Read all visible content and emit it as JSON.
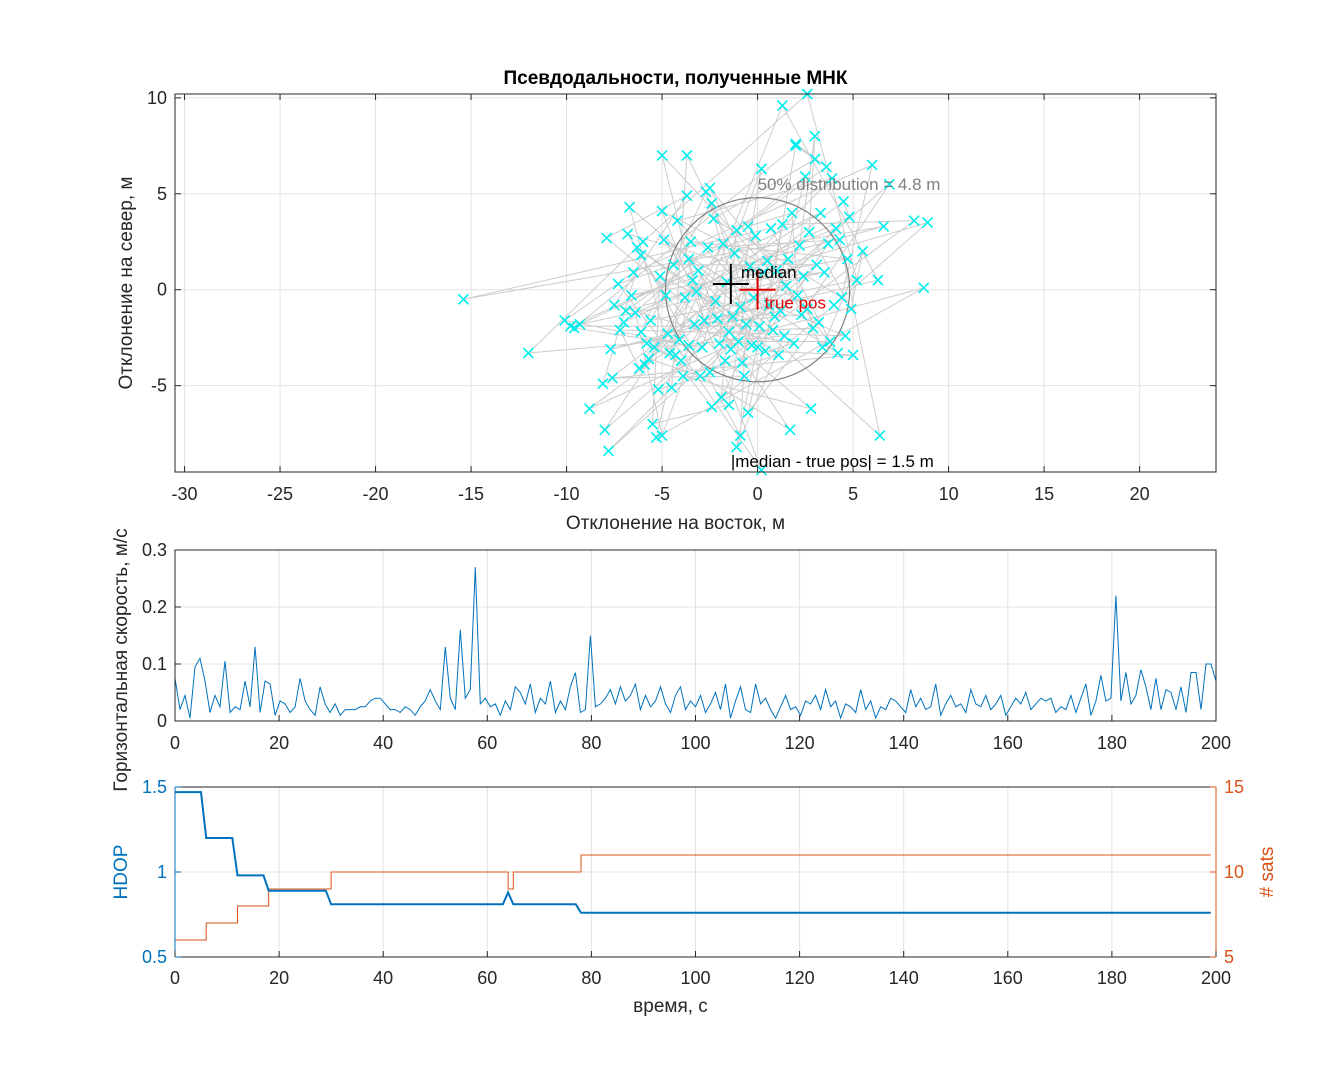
{
  "chart_data": [
    {
      "type": "scatter",
      "title": "Псевдодальности, полученные МНК",
      "xlabel": "Отклонение на восток, м",
      "ylabel": "Отклонение на север, м",
      "xlim": [
        -30.5,
        24
      ],
      "ylim": [
        -9.5,
        10.2
      ],
      "xticks": [
        -30,
        -25,
        -20,
        -15,
        -10,
        -5,
        0,
        5,
        10,
        15,
        20
      ],
      "yticks": [
        -5,
        0,
        5,
        10
      ],
      "grid": true,
      "colors": {
        "points": "#00f0f0",
        "track": "#cccccc",
        "circle": "#7f7f7f",
        "median": "#000000",
        "true_pos": "#e00000",
        "dist_label": "#7f7f7f"
      },
      "points": [
        [
          -15.4,
          -0.5
        ],
        [
          -12,
          -3.3
        ],
        [
          -10.1,
          -1.6
        ],
        [
          -9.8,
          -1.9
        ],
        [
          -9.6,
          -2.0
        ],
        [
          -9.3,
          -1.8
        ],
        [
          -8.8,
          -6.2
        ],
        [
          -8.1,
          -4.9
        ],
        [
          -8.0,
          -7.3
        ],
        [
          -7.8,
          -8.4
        ],
        [
          -7.9,
          2.7
        ],
        [
          -7.7,
          -3.1
        ],
        [
          -7.6,
          -4.6
        ],
        [
          -7.5,
          -0.8
        ],
        [
          -7.3,
          0.3
        ],
        [
          -7.2,
          -2.1
        ],
        [
          -7.0,
          -1.7
        ],
        [
          -6.9,
          -1.1
        ],
        [
          -6.8,
          2.9
        ],
        [
          -6.7,
          4.3
        ],
        [
          -6.6,
          -0.3
        ],
        [
          -6.5,
          0.9
        ],
        [
          -6.4,
          -1.2
        ],
        [
          -6.3,
          2.2
        ],
        [
          -6.2,
          -4.1
        ],
        [
          -6.1,
          1.8
        ],
        [
          -6.0,
          2.5
        ],
        [
          -5.9,
          -3.9
        ],
        [
          -5.8,
          -2.8
        ],
        [
          -5.7,
          -3.6
        ],
        [
          -5.6,
          -1.6
        ],
        [
          -5.5,
          -7.0
        ],
        [
          -5.4,
          -3.0
        ],
        [
          -5.3,
          -7.7
        ],
        [
          -5.2,
          -5.2
        ],
        [
          -5.1,
          0.7
        ],
        [
          -5.0,
          4.1
        ],
        [
          -5.0,
          -7.6
        ],
        [
          -4.9,
          2.6
        ],
        [
          -4.8,
          -0.3
        ],
        [
          -4.7,
          -2.3
        ],
        [
          -4.6,
          -3.3
        ],
        [
          -4.5,
          -5.1
        ],
        [
          -4.4,
          1.3
        ],
        [
          -4.3,
          -3.4
        ],
        [
          -4.2,
          3.6
        ],
        [
          -4.1,
          -2.6
        ],
        [
          -4.0,
          -3.7
        ],
        [
          -3.9,
          -4.5
        ],
        [
          -3.8,
          -0.4
        ],
        [
          -3.7,
          4.9
        ],
        [
          -3.6,
          1.6
        ],
        [
          -3.5,
          2.5
        ],
        [
          -3.4,
          0.5
        ],
        [
          -3.3,
          -1.8
        ],
        [
          -3.2,
          -0.1
        ],
        [
          -3.1,
          1.0
        ],
        [
          -3.0,
          -4.5
        ],
        [
          -2.9,
          -3.0
        ],
        [
          -2.8,
          -1.6
        ],
        [
          -2.7,
          5.1
        ],
        [
          -2.6,
          2.2
        ],
        [
          -2.5,
          -4.3
        ],
        [
          -2.4,
          4.5
        ],
        [
          -2.3,
          3.7
        ],
        [
          -2.2,
          -0.6
        ],
        [
          -2.1,
          -1.5
        ],
        [
          -2.0,
          -2.8
        ],
        [
          -1.9,
          -5.6
        ],
        [
          -1.8,
          2.4
        ],
        [
          -1.7,
          -3.7
        ],
        [
          -1.6,
          0.4
        ],
        [
          -1.5,
          -2.2
        ],
        [
          -1.4,
          -3.1
        ],
        [
          -1.3,
          -1.4
        ],
        [
          -1.2,
          1.9
        ],
        [
          -1.1,
          3.1
        ],
        [
          -1.0,
          -2.7
        ],
        [
          -0.9,
          -0.9
        ],
        [
          -0.8,
          -3.8
        ],
        [
          -0.7,
          -4.5
        ],
        [
          -0.6,
          -1.8
        ],
        [
          -0.5,
          3.3
        ],
        [
          -0.4,
          1.2
        ],
        [
          -0.3,
          -2.9
        ],
        [
          -0.2,
          -0.4
        ],
        [
          -0.1,
          2.8
        ],
        [
          0.0,
          -3.0
        ],
        [
          0.1,
          -1.9
        ],
        [
          0.2,
          6.3
        ],
        [
          0.3,
          0.9
        ],
        [
          0.4,
          -3.2
        ],
        [
          0.5,
          1.5
        ],
        [
          0.6,
          -0.8
        ],
        [
          0.7,
          3.2
        ],
        [
          0.8,
          -2.1
        ],
        [
          0.9,
          -1.4
        ],
        [
          1.0,
          1.0
        ],
        [
          1.1,
          -3.4
        ],
        [
          1.2,
          -1.1
        ],
        [
          1.3,
          3.4
        ],
        [
          1.4,
          -2.4
        ],
        [
          1.5,
          0.2
        ],
        [
          1.6,
          1.6
        ],
        [
          1.7,
          -7.3
        ],
        [
          1.8,
          4.0
        ],
        [
          1.9,
          -2.8
        ],
        [
          2.0,
          7.6
        ],
        [
          2.1,
          -0.3
        ],
        [
          2.2,
          2.3
        ],
        [
          2.3,
          -1.3
        ],
        [
          2.4,
          0.7
        ],
        [
          2.5,
          5.9
        ],
        [
          2.6,
          -1.0
        ],
        [
          2.7,
          3.0
        ],
        [
          2.8,
          -6.2
        ],
        [
          2.9,
          -2.0
        ],
        [
          3.0,
          6.8
        ],
        [
          3.1,
          1.3
        ],
        [
          3.2,
          -1.7
        ],
        [
          3.3,
          4.0
        ],
        [
          3.4,
          -3.0
        ],
        [
          3.5,
          0.9
        ],
        [
          3.6,
          6.4
        ],
        [
          3.7,
          2.4
        ],
        [
          3.8,
          -2.7
        ],
        [
          3.9,
          5.8
        ],
        [
          4.0,
          -0.8
        ],
        [
          4.1,
          3.2
        ],
        [
          4.2,
          -3.3
        ],
        [
          4.3,
          2.6
        ],
        [
          4.4,
          -0.4
        ],
        [
          4.5,
          4.6
        ],
        [
          4.6,
          -2.4
        ],
        [
          4.7,
          1.6
        ],
        [
          4.8,
          3.8
        ],
        [
          4.9,
          -1.0
        ],
        [
          5.0,
          -3.4
        ],
        [
          5.2,
          0.5
        ],
        [
          5.5,
          2.0
        ],
        [
          6.0,
          6.5
        ],
        [
          6.3,
          0.5
        ],
        [
          6.4,
          -7.6
        ],
        [
          6.6,
          3.3
        ],
        [
          6.9,
          5.5
        ],
        [
          8.2,
          3.6
        ],
        [
          8.7,
          0.1
        ],
        [
          8.9,
          3.5
        ],
        [
          -6.1,
          -2.2
        ],
        [
          -3.6,
          -2.9
        ],
        [
          1.3,
          9.6
        ],
        [
          2.6,
          10.2
        ],
        [
          -3.7,
          7.0
        ],
        [
          -5.0,
          7.0
        ],
        [
          -2.5,
          5.3
        ],
        [
          2.0,
          7.5
        ],
        [
          3.0,
          8.0
        ],
        [
          -0.5,
          -6.4
        ],
        [
          -0.9,
          -7.6
        ],
        [
          0.2,
          -9.4
        ],
        [
          -1.5,
          -6.0
        ],
        [
          -2.4,
          -6.1
        ],
        [
          -1.1,
          -8.2
        ]
      ],
      "track_order_note": "",
      "median": [
        -1.4,
        0.3
      ],
      "true_pos": [
        0,
        0
      ],
      "median_label": "median",
      "true_pos_label": "true pos",
      "circle_radius": 4.8,
      "circle_label": "50% distribution = 4.8 m",
      "diff_label": "|median - true pos| = 1.5 m"
    },
    {
      "type": "line",
      "title": "",
      "xlabel": "",
      "ylabel": "Горизонтальная скорость, м/с",
      "xlim": [
        0,
        200
      ],
      "ylim": [
        0,
        0.3
      ],
      "xticks": [
        0,
        20,
        40,
        60,
        80,
        100,
        120,
        140,
        160,
        180,
        200
      ],
      "yticks": [
        0,
        0.1,
        0.2,
        0.3
      ],
      "grid": true,
      "color": "#0072bd",
      "values": [
        0.075,
        0.02,
        0.045,
        0.005,
        0.095,
        0.11,
        0.07,
        0.015,
        0.045,
        0.025,
        0.105,
        0.015,
        0.025,
        0.02,
        0.07,
        0.025,
        0.13,
        0.015,
        0.07,
        0.065,
        0.01,
        0.035,
        0.03,
        0.015,
        0.025,
        0.075,
        0.035,
        0.02,
        0.01,
        0.06,
        0.03,
        0.015,
        0.03,
        0.01,
        0.02,
        0.02,
        0.02,
        0.025,
        0.025,
        0.035,
        0.04,
        0.04,
        0.03,
        0.02,
        0.02,
        0.015,
        0.025,
        0.02,
        0.01,
        0.025,
        0.035,
        0.055,
        0.035,
        0.02,
        0.13,
        0.04,
        0.02,
        0.16,
        0.04,
        0.055,
        0.27,
        0.03,
        0.04,
        0.025,
        0.03,
        0.01,
        0.035,
        0.02,
        0.06,
        0.05,
        0.03,
        0.065,
        0.015,
        0.04,
        0.03,
        0.07,
        0.015,
        0.035,
        0.02,
        0.06,
        0.085,
        0.015,
        0.02,
        0.15,
        0.025,
        0.03,
        0.04,
        0.055,
        0.03,
        0.06,
        0.035,
        0.045,
        0.065,
        0.02,
        0.045,
        0.025,
        0.035,
        0.06,
        0.03,
        0.015,
        0.045,
        0.06,
        0.02,
        0.035,
        0.025,
        0.045,
        0.015,
        0.03,
        0.05,
        0.02,
        0.065,
        0.005,
        0.035,
        0.06,
        0.02,
        0.015,
        0.065,
        0.03,
        0.04,
        0.02,
        0.005,
        0.025,
        0.045,
        0.02,
        0.025,
        0.01,
        0.035,
        0.03,
        0.045,
        0.02,
        0.055,
        0.025,
        0.035,
        0.005,
        0.03,
        0.025,
        0.015,
        0.055,
        0.02,
        0.035,
        0.005,
        0.025,
        0.02,
        0.04,
        0.035,
        0.025,
        0.015,
        0.055,
        0.025,
        0.04,
        0.02,
        0.025,
        0.065,
        0.01,
        0.03,
        0.045,
        0.025,
        0.03,
        0.015,
        0.055,
        0.03,
        0.025,
        0.045,
        0.02,
        0.03,
        0.045,
        0.01,
        0.025,
        0.04,
        0.03,
        0.05,
        0.02,
        0.03,
        0.04,
        0.035,
        0.04,
        0.015,
        0.025,
        0.02,
        0.045,
        0.015,
        0.04,
        0.065,
        0.01,
        0.035,
        0.08,
        0.035,
        0.04,
        0.22,
        0.035,
        0.085,
        0.03,
        0.045,
        0.09,
        0.06,
        0.02,
        0.075,
        0.02,
        0.055,
        0.05,
        0.02,
        0.06,
        0.015,
        0.085,
        0.085,
        0.02,
        0.1,
        0.1,
        0.07
      ]
    },
    {
      "type": "line",
      "title": "",
      "xlabel": "время, с",
      "ylabel_left": "HDOP",
      "ylabel_right": "# sats",
      "xlim": [
        0,
        200
      ],
      "ylim_left": [
        0.5,
        1.5
      ],
      "ylim_right": [
        5,
        15
      ],
      "xticks": [
        0,
        20,
        40,
        60,
        80,
        100,
        120,
        140,
        160,
        180,
        200
      ],
      "yticks_left": [
        0.5,
        1,
        1.5
      ],
      "yticks_right": [
        5,
        10,
        15
      ],
      "grid": true,
      "series": [
        {
          "name": "HDOP",
          "axis": "left",
          "color": "#0072bd",
          "x": [
            0,
            5,
            6,
            11,
            12,
            17,
            18,
            29,
            30,
            63,
            64,
            65,
            77,
            78,
            199
          ],
          "y": [
            1.47,
            1.47,
            1.2,
            1.2,
            0.98,
            0.98,
            0.89,
            0.89,
            0.81,
            0.81,
            0.88,
            0.81,
            0.81,
            0.76,
            0.76
          ]
        },
        {
          "name": "# sats",
          "axis": "right",
          "color": "#d95319",
          "x": [
            0,
            6,
            6,
            12,
            12,
            18,
            18,
            30,
            30,
            64,
            64,
            65,
            65,
            78,
            78,
            199
          ],
          "y": [
            6,
            6,
            7,
            7,
            8,
            8,
            9,
            9,
            10,
            10,
            9,
            9,
            10,
            10,
            11,
            11
          ]
        }
      ]
    }
  ]
}
